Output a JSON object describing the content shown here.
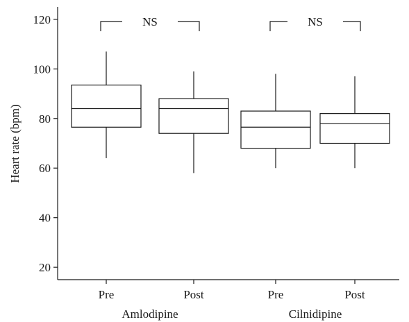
{
  "chart_data": {
    "type": "box",
    "ylabel": "Heart rate (bpm)",
    "ylim": [
      15,
      125
    ],
    "yticks": [
      20,
      40,
      60,
      80,
      100,
      120
    ],
    "grid": false,
    "groups": [
      {
        "name": "Amlodipine",
        "boxes": [
          {
            "label": "Pre",
            "min": 64,
            "q1": 76.5,
            "median": 84,
            "q3": 93.5,
            "max": 107
          },
          {
            "label": "Post",
            "min": 58,
            "q1": 74,
            "median": 84,
            "q3": 88,
            "max": 99
          }
        ],
        "annotation": "NS"
      },
      {
        "name": "Cilnidipine",
        "boxes": [
          {
            "label": "Pre",
            "min": 60,
            "q1": 68,
            "median": 76.5,
            "q3": 83,
            "max": 98
          },
          {
            "label": "Post",
            "min": 60,
            "q1": 70,
            "median": 78,
            "q3": 82,
            "max": 97
          }
        ],
        "annotation": "NS"
      }
    ]
  }
}
